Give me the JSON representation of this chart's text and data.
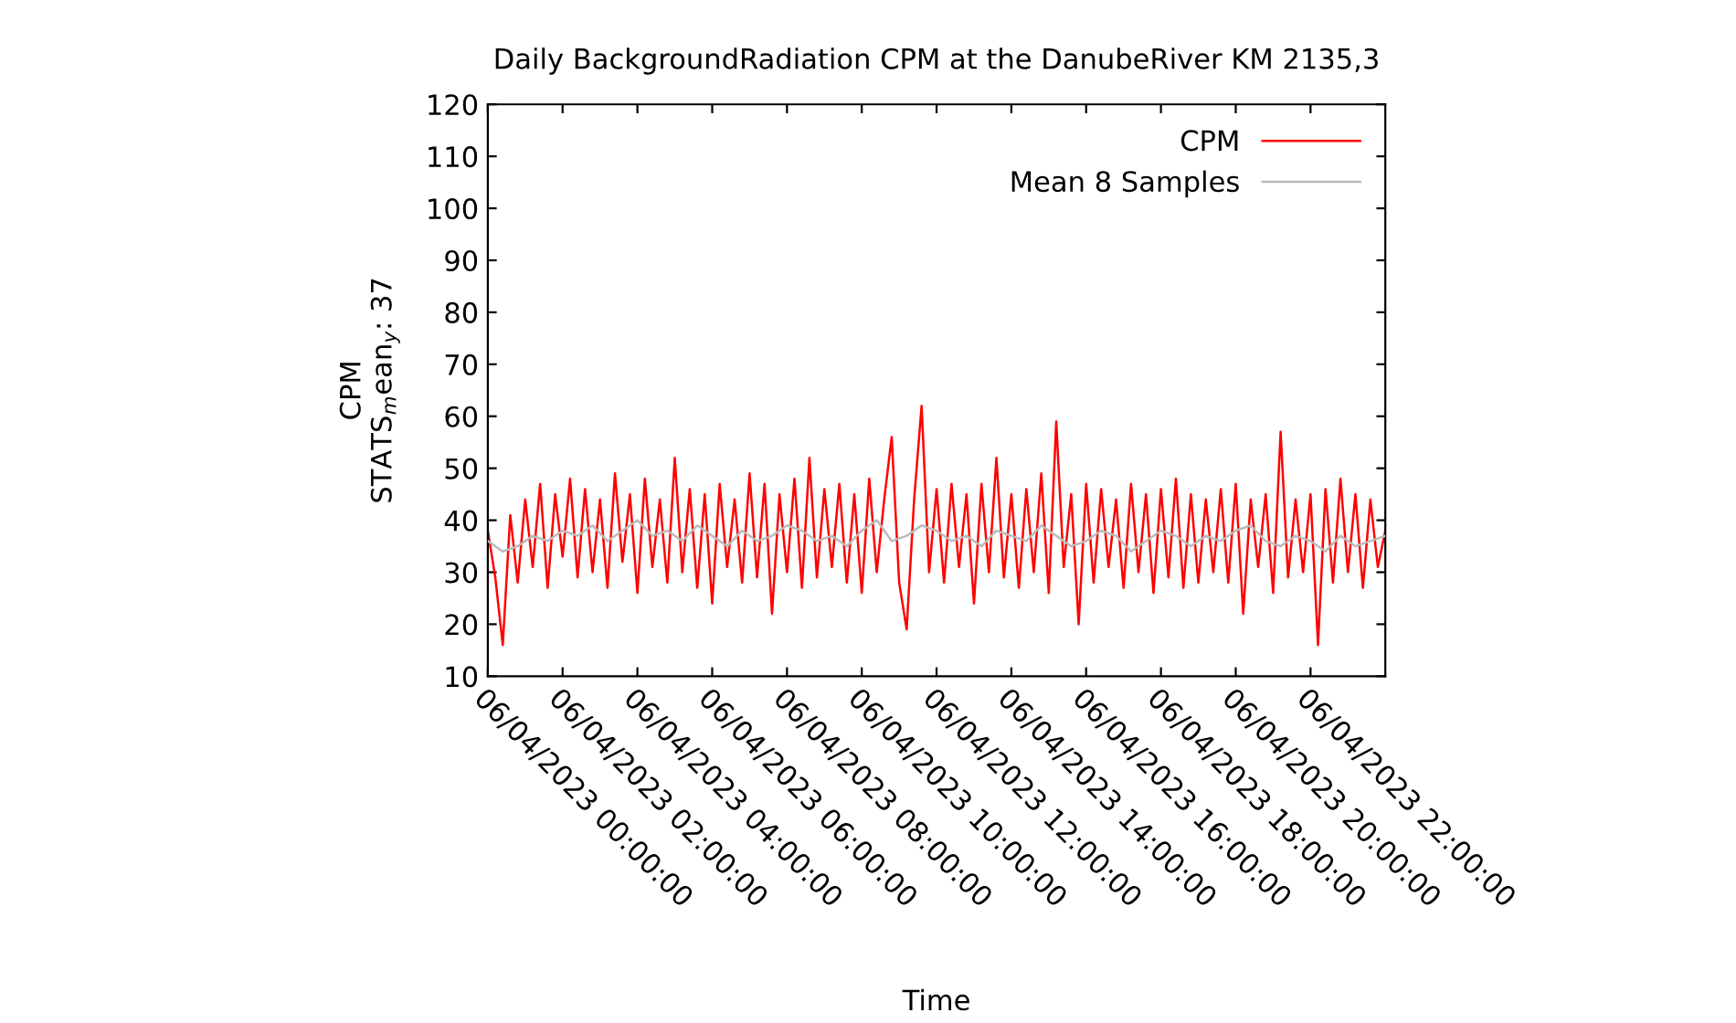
{
  "chart_data": {
    "type": "line",
    "title": "Daily BackgroundRadiation CPM at the DanubeRiver KM 2135,3",
    "xlabel": "Time",
    "ylabel": "CPM\nSTATS$_{m}$ean$_{y}$: 37",
    "series": [
      {
        "name": "CPM",
        "color": "#ff0000",
        "x": [
          "2023-04-06T00:00",
          "2023-04-06T00:12",
          "2023-04-06T00:24",
          "2023-04-06T00:36",
          "2023-04-06T00:48",
          "2023-04-06T01:00",
          "2023-04-06T01:12",
          "2023-04-06T01:24",
          "2023-04-06T01:36",
          "2023-04-06T01:48",
          "2023-04-06T02:00",
          "2023-04-06T02:12",
          "2023-04-06T02:24",
          "2023-04-06T02:36",
          "2023-04-06T02:48",
          "2023-04-06T03:00",
          "2023-04-06T03:12",
          "2023-04-06T03:24",
          "2023-04-06T03:36",
          "2023-04-06T03:48",
          "2023-04-06T04:00",
          "2023-04-06T04:12",
          "2023-04-06T04:24",
          "2023-04-06T04:36",
          "2023-04-06T04:48",
          "2023-04-06T05:00",
          "2023-04-06T05:12",
          "2023-04-06T05:24",
          "2023-04-06T05:36",
          "2023-04-06T05:48",
          "2023-04-06T06:00",
          "2023-04-06T06:12",
          "2023-04-06T06:24",
          "2023-04-06T06:36",
          "2023-04-06T06:48",
          "2023-04-06T07:00",
          "2023-04-06T07:12",
          "2023-04-06T07:24",
          "2023-04-06T07:36",
          "2023-04-06T07:48",
          "2023-04-06T08:00",
          "2023-04-06T08:12",
          "2023-04-06T08:24",
          "2023-04-06T08:36",
          "2023-04-06T08:48",
          "2023-04-06T09:00",
          "2023-04-06T09:12",
          "2023-04-06T09:24",
          "2023-04-06T09:36",
          "2023-04-06T09:48",
          "2023-04-06T10:00",
          "2023-04-06T10:12",
          "2023-04-06T10:24",
          "2023-04-06T10:36",
          "2023-04-06T10:48",
          "2023-04-06T11:00",
          "2023-04-06T11:12",
          "2023-04-06T11:24",
          "2023-04-06T11:36",
          "2023-04-06T11:48",
          "2023-04-06T12:00",
          "2023-04-06T12:12",
          "2023-04-06T12:24",
          "2023-04-06T12:36",
          "2023-04-06T12:48",
          "2023-04-06T13:00",
          "2023-04-06T13:12",
          "2023-04-06T13:24",
          "2023-04-06T13:36",
          "2023-04-06T13:48",
          "2023-04-06T14:00",
          "2023-04-06T14:12",
          "2023-04-06T14:24",
          "2023-04-06T14:36",
          "2023-04-06T14:48",
          "2023-04-06T15:00",
          "2023-04-06T15:12",
          "2023-04-06T15:24",
          "2023-04-06T15:36",
          "2023-04-06T15:48",
          "2023-04-06T16:00",
          "2023-04-06T16:12",
          "2023-04-06T16:24",
          "2023-04-06T16:36",
          "2023-04-06T16:48",
          "2023-04-06T17:00",
          "2023-04-06T17:12",
          "2023-04-06T17:24",
          "2023-04-06T17:36",
          "2023-04-06T17:48",
          "2023-04-06T18:00",
          "2023-04-06T18:12",
          "2023-04-06T18:24",
          "2023-04-06T18:36",
          "2023-04-06T18:48",
          "2023-04-06T19:00",
          "2023-04-06T19:12",
          "2023-04-06T19:24",
          "2023-04-06T19:36",
          "2023-04-06T19:48",
          "2023-04-06T20:00",
          "2023-04-06T20:12",
          "2023-04-06T20:24",
          "2023-04-06T20:36",
          "2023-04-06T20:48",
          "2023-04-06T21:00",
          "2023-04-06T21:12",
          "2023-04-06T21:24",
          "2023-04-06T21:36",
          "2023-04-06T21:48",
          "2023-04-06T22:00",
          "2023-04-06T22:12",
          "2023-04-06T22:24",
          "2023-04-06T22:36",
          "2023-04-06T22:48",
          "2023-04-06T23:00",
          "2023-04-06T23:12",
          "2023-04-06T23:24",
          "2023-04-06T23:36",
          "2023-04-06T23:48",
          "2023-04-07T00:00"
        ],
        "values": [
          38,
          29,
          16,
          41,
          28,
          44,
          31,
          47,
          27,
          45,
          33,
          48,
          29,
          46,
          30,
          44,
          27,
          49,
          32,
          45,
          26,
          48,
          31,
          44,
          28,
          52,
          30,
          46,
          27,
          45,
          24,
          47,
          31,
          44,
          28,
          49,
          29,
          47,
          22,
          45,
          30,
          48,
          27,
          52,
          29,
          46,
          31,
          47,
          28,
          45,
          26,
          48,
          30,
          44,
          56,
          28,
          19,
          44,
          62,
          30,
          46,
          28,
          47,
          31,
          45,
          24,
          47,
          30,
          52,
          29,
          45,
          27,
          46,
          30,
          49,
          26,
          59,
          31,
          45,
          20,
          47,
          28,
          46,
          31,
          44,
          27,
          47,
          30,
          45,
          26,
          46,
          29,
          48,
          27,
          45,
          28,
          44,
          30,
          46,
          28,
          47,
          22,
          44,
          31,
          45,
          26,
          57,
          29,
          44,
          30,
          45,
          16,
          46,
          28,
          48,
          30,
          45,
          27,
          44,
          31,
          38
        ]
      },
      {
        "name": "Mean 8 Samples",
        "color": "#bbbbbb",
        "x": [
          "2023-04-06T00:00",
          "2023-04-06T00:24",
          "2023-04-06T00:48",
          "2023-04-06T01:12",
          "2023-04-06T01:36",
          "2023-04-06T02:00",
          "2023-04-06T02:24",
          "2023-04-06T02:48",
          "2023-04-06T03:12",
          "2023-04-06T03:36",
          "2023-04-06T04:00",
          "2023-04-06T04:24",
          "2023-04-06T04:48",
          "2023-04-06T05:12",
          "2023-04-06T05:36",
          "2023-04-06T06:00",
          "2023-04-06T06:24",
          "2023-04-06T06:48",
          "2023-04-06T07:12",
          "2023-04-06T07:36",
          "2023-04-06T08:00",
          "2023-04-06T08:24",
          "2023-04-06T08:48",
          "2023-04-06T09:12",
          "2023-04-06T09:36",
          "2023-04-06T10:00",
          "2023-04-06T10:24",
          "2023-04-06T10:48",
          "2023-04-06T11:12",
          "2023-04-06T11:36",
          "2023-04-06T12:00",
          "2023-04-06T12:24",
          "2023-04-06T12:48",
          "2023-04-06T13:12",
          "2023-04-06T13:36",
          "2023-04-06T14:00",
          "2023-04-06T14:24",
          "2023-04-06T14:48",
          "2023-04-06T15:12",
          "2023-04-06T15:36",
          "2023-04-06T16:00",
          "2023-04-06T16:24",
          "2023-04-06T16:48",
          "2023-04-06T17:12",
          "2023-04-06T17:36",
          "2023-04-06T18:00",
          "2023-04-06T18:24",
          "2023-04-06T18:48",
          "2023-04-06T19:12",
          "2023-04-06T19:36",
          "2023-04-06T20:00",
          "2023-04-06T20:24",
          "2023-04-06T20:48",
          "2023-04-06T21:12",
          "2023-04-06T21:36",
          "2023-04-06T22:00",
          "2023-04-06T22:24",
          "2023-04-06T22:48",
          "2023-04-06T23:12",
          "2023-04-06T23:36",
          "2023-04-07T00:00"
        ],
        "values": [
          36,
          34,
          35,
          37,
          36,
          38,
          37,
          39,
          36,
          38,
          40,
          37,
          38,
          36,
          39,
          37,
          35,
          38,
          36,
          37,
          39,
          38,
          36,
          37,
          35,
          38,
          40,
          36,
          37,
          39,
          38,
          36,
          37,
          35,
          38,
          37,
          36,
          39,
          37,
          35,
          36,
          38,
          37,
          34,
          36,
          38,
          37,
          35,
          37,
          36,
          38,
          39,
          36,
          35,
          37,
          36,
          34,
          37,
          35,
          36,
          37
        ]
      }
    ],
    "xlim": [
      "2023-04-06T00:00",
      "2023-04-07T00:00"
    ],
    "xticks": [
      {
        "value": "2023-04-06T00:00",
        "label": "06/04/2023 00:00:00"
      },
      {
        "value": "2023-04-06T02:00",
        "label": "06/04/2023 02:00:00"
      },
      {
        "value": "2023-04-06T04:00",
        "label": "06/04/2023 04:00:00"
      },
      {
        "value": "2023-04-06T06:00",
        "label": "06/04/2023 06:00:00"
      },
      {
        "value": "2023-04-06T08:00",
        "label": "06/04/2023 08:00:00"
      },
      {
        "value": "2023-04-06T10:00",
        "label": "06/04/2023 10:00:00"
      },
      {
        "value": "2023-04-06T12:00",
        "label": "06/04/2023 12:00:00"
      },
      {
        "value": "2023-04-06T14:00",
        "label": "06/04/2023 14:00:00"
      },
      {
        "value": "2023-04-06T16:00",
        "label": "06/04/2023 16:00:00"
      },
      {
        "value": "2023-04-06T18:00",
        "label": "06/04/2023 18:00:00"
      },
      {
        "value": "2023-04-06T20:00",
        "label": "06/04/2023 20:00:00"
      },
      {
        "value": "2023-04-06T22:00",
        "label": "06/04/2023 22:00:00"
      }
    ],
    "ylim": [
      10,
      120
    ],
    "yticks": [
      10,
      20,
      30,
      40,
      50,
      60,
      70,
      80,
      90,
      100,
      110,
      120
    ],
    "legend": "top right",
    "grid": false,
    "line_style": "solid"
  }
}
